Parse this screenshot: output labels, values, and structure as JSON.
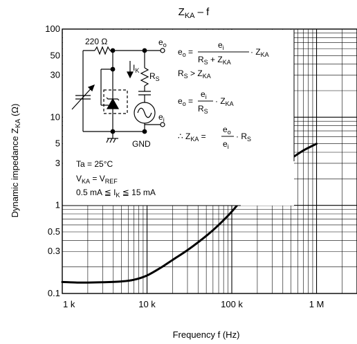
{
  "chart_data": {
    "type": "line",
    "title": {
      "main": "Z",
      "sub": "KA",
      "tail": " – f"
    },
    "xlabel": "Frequency   f   (Hz)",
    "ylabel": {
      "a": "Dynamic impedance   Z",
      "sub": "KA",
      "b": "   (Ω)"
    },
    "x_scale": "log",
    "y_scale": "log",
    "xlim": [
      1000,
      3000000
    ],
    "ylim": [
      0.1,
      100
    ],
    "x_ticks": [
      {
        "value": 1000,
        "label": "1 k"
      },
      {
        "value": 10000,
        "label": "10 k"
      },
      {
        "value": 100000,
        "label": "100 k"
      },
      {
        "value": 1000000,
        "label": "1 M"
      }
    ],
    "y_ticks": [
      {
        "value": 0.1,
        "label": "0.1"
      },
      {
        "value": 0.3,
        "label": "0.3"
      },
      {
        "value": 0.5,
        "label": "0.5"
      },
      {
        "value": 1,
        "label": "1"
      },
      {
        "value": 3,
        "label": "3"
      },
      {
        "value": 5,
        "label": "5"
      },
      {
        "value": 10,
        "label": "10"
      },
      {
        "value": 30,
        "label": "30"
      },
      {
        "value": 50,
        "label": "50"
      },
      {
        "value": 100,
        "label": "100"
      }
    ],
    "grid": true,
    "series": [
      {
        "x": [
          1000,
          1500,
          2000,
          3000,
          5000,
          7000,
          10000,
          15000,
          20000,
          30000,
          50000,
          70000,
          100000,
          150000,
          200000,
          300000,
          500000,
          700000,
          1000000
        ],
        "y": [
          0.135,
          0.133,
          0.133,
          0.134,
          0.137,
          0.143,
          0.16,
          0.2,
          0.24,
          0.31,
          0.45,
          0.6,
          0.85,
          1.35,
          1.8,
          2.5,
          3.4,
          4.2,
          5.0
        ]
      }
    ],
    "line_color": "#000000"
  },
  "annotations": {
    "conditions": [
      {
        "a": "Ta = 25°C"
      },
      {
        "a": "V",
        "sub1": "KA",
        "b": " = V",
        "sub2": "REF"
      },
      {
        "a": "0.5 mA  ≦  I",
        "sub1": "K",
        "b": "  ≦  15 mA"
      }
    ],
    "circuit": {
      "resistor": "220 Ω",
      "rs": "R",
      "rs_sub": "S",
      "ik": "I",
      "ik_sub": "K",
      "eo": "e",
      "eo_sub": "o",
      "ei": "e",
      "ei_sub": "i",
      "gnd": "GND"
    },
    "formulas": {
      "f1_lhs": "e",
      "f1_lhs_sub": "o",
      "f1_eq": " =",
      "f1_num": "e",
      "f1_num_sub": "i",
      "f1_den_a": "R",
      "f1_den_a_sub": "S",
      "f1_den_plus": " + Z",
      "f1_den_b_sub": "KA",
      "f1_tail": "· Z",
      "f1_tail_sub": "KA",
      "f2_a": "R",
      "f2_a_sub": "S",
      "f2_op": " > Z",
      "f2_b_sub": "KA",
      "f3_lhs": "e",
      "f3_lhs_sub": "o",
      "f3_eq": " =",
      "f3_num": "e",
      "f3_num_sub": "i",
      "f3_den": "R",
      "f3_den_sub": "S",
      "f3_tail": "· Z",
      "f3_tail_sub": "KA",
      "f4_lhs": "∴ Z",
      "f4_lhs_sub": "KA",
      "f4_eq": " =",
      "f4_num": "e",
      "f4_num_sub": "o",
      "f4_den": "e",
      "f4_den_sub": "i",
      "f4_tail": "· R",
      "f4_tail_sub": "S"
    }
  }
}
